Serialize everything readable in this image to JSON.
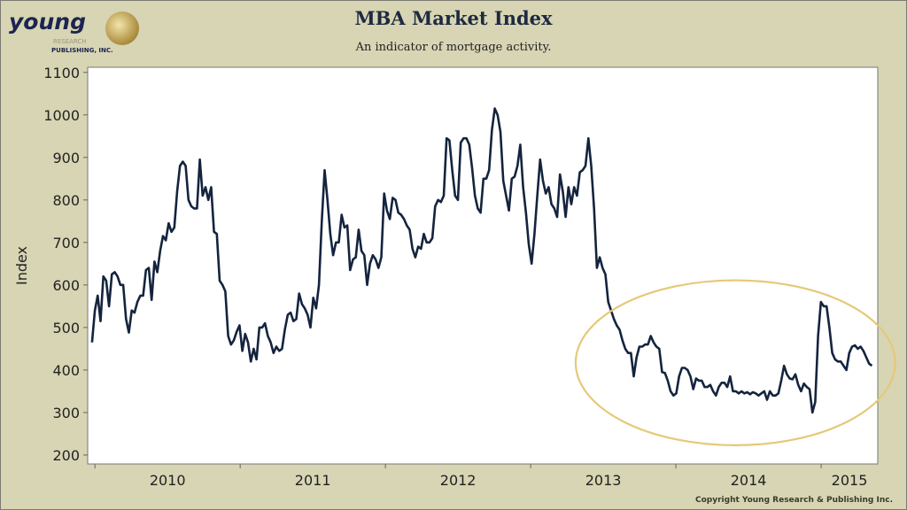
{
  "header": {
    "title": "MBA Market Index",
    "subtitle": "An indicator of mortgage activity.",
    "logo_text": "YOUNG RESEARCH & PUBLISHING, INC.",
    "copyright": "Copyright Young Research & Publishing Inc."
  },
  "colors": {
    "background": "#d7d5b3",
    "line": "#14243e",
    "ellipse": "#e6c878",
    "plot_bg": "#ffffff"
  },
  "chart_data": {
    "type": "line",
    "title": "MBA Market Index",
    "subtitle": "An indicator of mortgage activity.",
    "xlabel": "",
    "ylabel": "Index",
    "frequency": "weekly",
    "x_range": [
      2009.98,
      2015.35
    ],
    "xlim": [
      2009.95,
      2015.39
    ],
    "ylim": [
      179,
      1112
    ],
    "yticks": [
      200,
      300,
      400,
      500,
      600,
      700,
      800,
      900,
      1000,
      1100
    ],
    "xtick_labels": [
      "2010",
      "2011",
      "2012",
      "2013",
      "2014",
      "2015"
    ],
    "grid": false,
    "legend": "none",
    "values": [
      465,
      540,
      575,
      515,
      620,
      610,
      550,
      625,
      630,
      620,
      600,
      600,
      520,
      488,
      540,
      535,
      560,
      575,
      575,
      635,
      640,
      565,
      655,
      630,
      680,
      715,
      705,
      745,
      725,
      735,
      820,
      880,
      890,
      880,
      800,
      785,
      780,
      780,
      895,
      810,
      830,
      800,
      830,
      725,
      720,
      610,
      600,
      585,
      480,
      460,
      470,
      490,
      505,
      445,
      485,
      465,
      420,
      450,
      425,
      500,
      500,
      510,
      480,
      465,
      440,
      455,
      445,
      450,
      495,
      530,
      535,
      515,
      520,
      580,
      555,
      545,
      530,
      500,
      570,
      545,
      600,
      750,
      870,
      800,
      720,
      670,
      700,
      700,
      765,
      735,
      740,
      635,
      660,
      665,
      730,
      680,
      670,
      600,
      650,
      670,
      660,
      640,
      665,
      815,
      775,
      755,
      805,
      800,
      770,
      765,
      755,
      740,
      730,
      685,
      665,
      690,
      685,
      720,
      700,
      700,
      710,
      785,
      800,
      795,
      810,
      945,
      940,
      870,
      810,
      800,
      935,
      945,
      945,
      930,
      875,
      810,
      780,
      770,
      850,
      850,
      870,
      965,
      1015,
      1000,
      960,
      845,
      810,
      775,
      850,
      855,
      880,
      930,
      830,
      770,
      695,
      650,
      720,
      810,
      895,
      845,
      815,
      830,
      790,
      780,
      760,
      860,
      820,
      760,
      830,
      790,
      830,
      810,
      865,
      870,
      880,
      945,
      880,
      780,
      640,
      665,
      640,
      625,
      560,
      540,
      520,
      505,
      495,
      470,
      450,
      440,
      440,
      385,
      430,
      455,
      455,
      460,
      460,
      480,
      465,
      455,
      450,
      395,
      393,
      375,
      350,
      340,
      345,
      385,
      405,
      405,
      400,
      385,
      355,
      380,
      375,
      375,
      360,
      360,
      365,
      350,
      340,
      360,
      370,
      370,
      360,
      385,
      350,
      350,
      345,
      350,
      345,
      348,
      343,
      348,
      345,
      340,
      345,
      350,
      330,
      350,
      340,
      340,
      345,
      375,
      410,
      390,
      380,
      378,
      390,
      365,
      350,
      368,
      360,
      355,
      300,
      325,
      480,
      560,
      550,
      550,
      500,
      440,
      425,
      420,
      420,
      410,
      400,
      440,
      455,
      458,
      450,
      455,
      445,
      430,
      415,
      410
    ],
    "annotations": [
      {
        "type": "ellipse",
        "center": [
          2014.41,
          417
        ],
        "half_width_years": 1.1,
        "half_height_index": 194
      }
    ]
  }
}
